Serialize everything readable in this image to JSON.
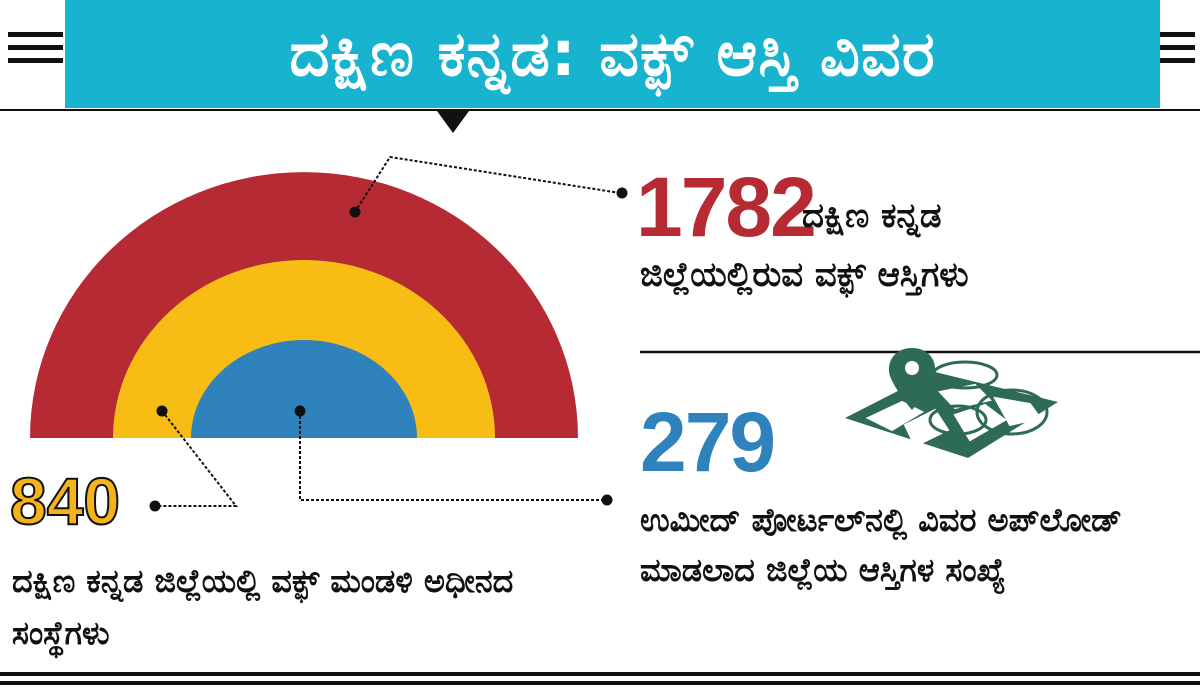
{
  "header": {
    "title": "ದಕ್ಷಿಣ ಕನ್ನಡ: ವಕ್ಫ್ ಆಸ್ತಿ ವಿವರ"
  },
  "stats": {
    "total": {
      "value": "1782",
      "caption_line1": "ದಕ್ಷಿಣ ಕನ್ನಡ",
      "caption_line2": "ಜಿಲ್ಲೆಯಲ್ಲಿರುವ ವಕ್ಫ್ ಆಸ್ತಿಗಳು"
    },
    "uploaded": {
      "value": "279",
      "caption": "ಉಮೀದ್ ಪೋರ್ಟಲ್‌ನಲ್ಲಿ ವಿವರ ಅಪ್‌ಲೋಡ್ ಮಾಡಲಾದ ಜಿಲ್ಲೆಯ ಆಸ್ತಿಗಳ ಸಂಖ್ಯೆ"
    },
    "board": {
      "value": "840",
      "caption": "ದಕ್ಷಿಣ ಕನ್ನಡ ಜಿಲ್ಲೆಯಲ್ಲಿ ವಕ್ಫ್ ಮಂಡಳಿ ಅಧೀನದ ಸಂಸ್ಥೆಗಳು"
    }
  },
  "icons": {
    "map": "map-pin-icon"
  },
  "colors": {
    "banner": "#17b3cf",
    "red": "#b62a34",
    "yellow": "#f8bd15",
    "blue": "#2f82bc",
    "map_green": "#2e6b55"
  }
}
